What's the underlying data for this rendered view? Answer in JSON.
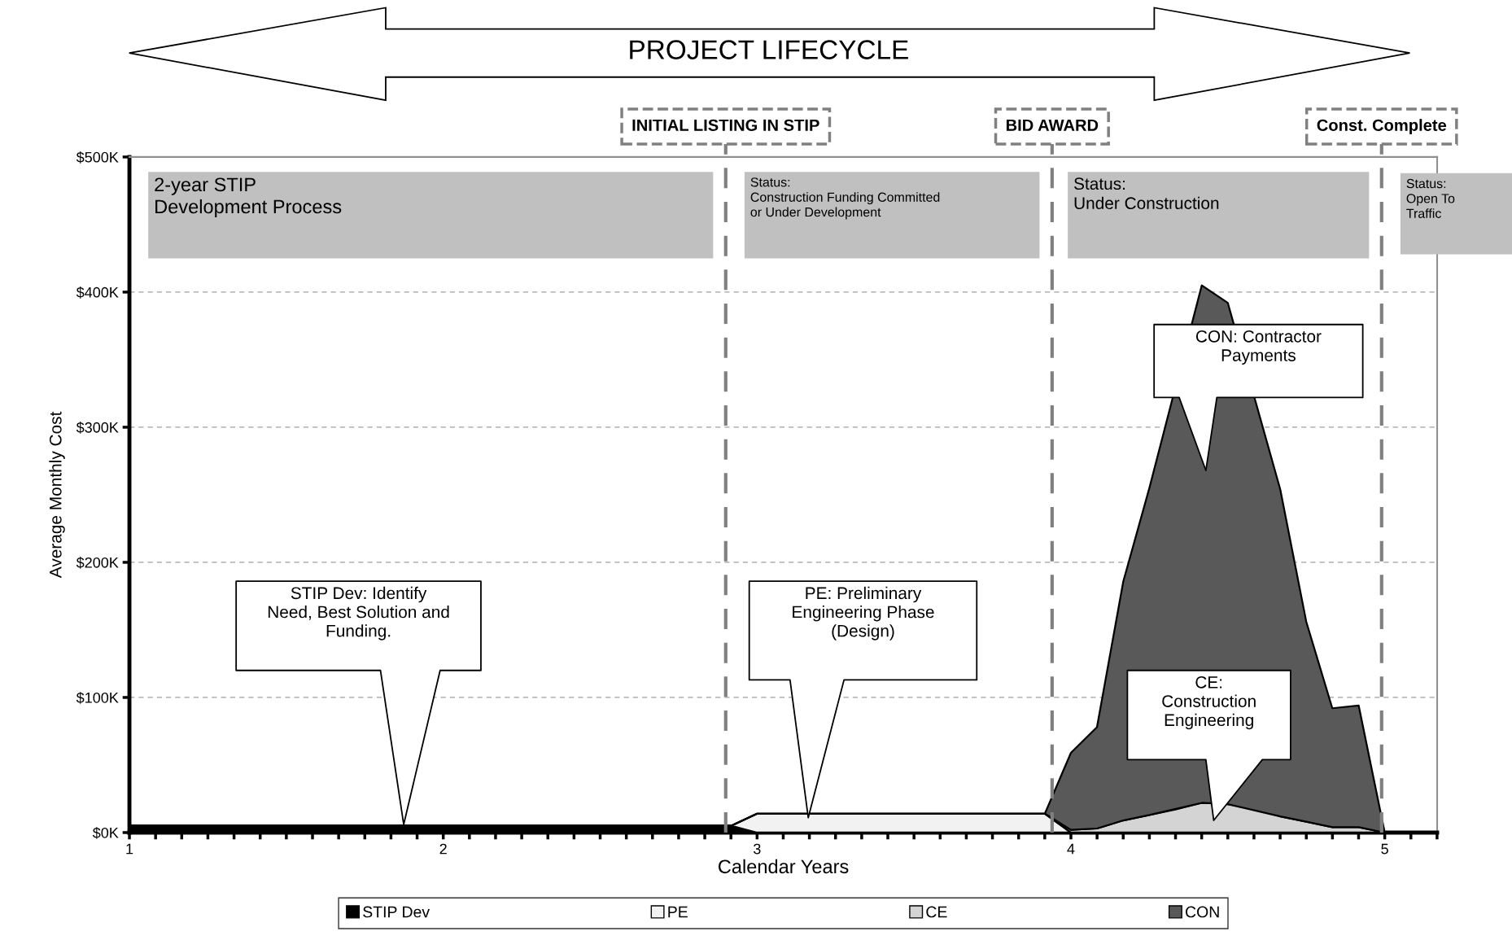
{
  "chart_data": {
    "type": "area",
    "title": "PROJECT LIFECYCLE",
    "xlabel": "Calendar Years",
    "ylabel": "Average Monthly Cost",
    "stacked": true,
    "x": [
      1,
      2.917,
      3,
      3.917,
      4,
      4.083,
      4.167,
      4.25,
      4.333,
      4.417,
      4.5,
      4.583,
      4.667,
      4.75,
      4.833,
      4.917,
      5
    ],
    "series": [
      {
        "name": "STIP Dev",
        "color": "#000000",
        "values": [
          5,
          5,
          0,
          0,
          0,
          0,
          0,
          0,
          0,
          0,
          0,
          0,
          0,
          0,
          0,
          0,
          0
        ]
      },
      {
        "name": "PE",
        "color": "#f2f2f2",
        "values": [
          0,
          0,
          14,
          14,
          0,
          0,
          0,
          0,
          0,
          0,
          0,
          0,
          0,
          0,
          0,
          0,
          0
        ]
      },
      {
        "name": "CE",
        "color": "#d4d4d4",
        "values": [
          0,
          0,
          0,
          0,
          2,
          3,
          9,
          13,
          17,
          22,
          21,
          18,
          12,
          8,
          4,
          4,
          0
        ]
      },
      {
        "name": "CON",
        "color": "#595959",
        "values": [
          0,
          0,
          0,
          0,
          57,
          75,
          177,
          242,
          null,
          383,
          371,
          null,
          242,
          148,
          88,
          90,
          0
        ]
      }
    ],
    "xlim": [
      1,
      5.167
    ],
    "xticks": [
      1,
      2,
      3,
      4,
      5
    ],
    "ylim": [
      0,
      500
    ],
    "yticks": [
      {
        "value": 0,
        "label": "$0K"
      },
      {
        "value": 100,
        "label": "$100K"
      },
      {
        "value": 200,
        "label": "$200K"
      },
      {
        "value": 300,
        "label": "$300K"
      },
      {
        "value": 400,
        "label": "$400K"
      },
      {
        "value": 500,
        "label": "$500K"
      }
    ],
    "grid": "y",
    "legend": "bottom",
    "ref_lines": [
      {
        "axis": "x",
        "value": 2.9,
        "label": "INITIAL LISTING IN STIP",
        "color": "#808080",
        "line_style": "dashed"
      },
      {
        "axis": "x",
        "value": 3.94,
        "label": "BID AWARD",
        "color": "#808080",
        "line_style": "dashed"
      },
      {
        "axis": "x",
        "value": 4.99,
        "label": "Const. Complete",
        "color": "#808080",
        "line_style": "dashed"
      }
    ],
    "annotations": [
      "2-year STIP\nDevelopment Process",
      "Status:\nConstruction Funding Committed\nor Under Development",
      "Status:\nUnder Construction",
      "Status:\nOpen To\nTraffic",
      "STIP Dev: Identify\nNeed, Best Solution and\nFunding.",
      "PE: Preliminary\nEngineering Phase\n(Design)",
      "CE:\nConstruction\nEngineering",
      "CON: Contractor\nPayments"
    ]
  }
}
